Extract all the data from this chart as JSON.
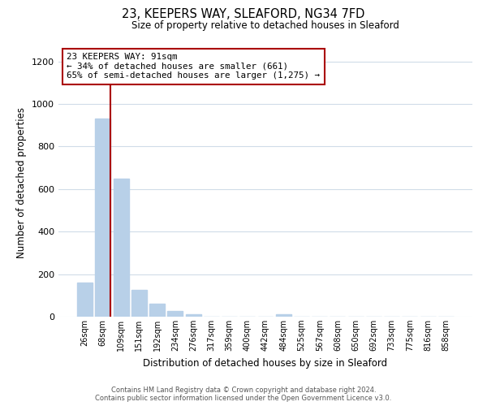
{
  "title_line1": "23, KEEPERS WAY, SLEAFORD, NG34 7FD",
  "title_line2": "Size of property relative to detached houses in Sleaford",
  "xlabel": "Distribution of detached houses by size in Sleaford",
  "ylabel": "Number of detached properties",
  "bar_labels": [
    "26sqm",
    "68sqm",
    "109sqm",
    "151sqm",
    "192sqm",
    "234sqm",
    "276sqm",
    "317sqm",
    "359sqm",
    "400sqm",
    "442sqm",
    "484sqm",
    "525sqm",
    "567sqm",
    "608sqm",
    "650sqm",
    "692sqm",
    "733sqm",
    "775sqm",
    "816sqm",
    "858sqm"
  ],
  "bar_values": [
    160,
    930,
    650,
    125,
    60,
    28,
    12,
    0,
    0,
    0,
    0,
    13,
    0,
    0,
    0,
    0,
    0,
    0,
    0,
    0,
    0
  ],
  "bar_color": "#b8d0e8",
  "vline_color": "#aa0000",
  "annotation_text": "23 KEEPERS WAY: 91sqm\n← 34% of detached houses are smaller (661)\n65% of semi-detached houses are larger (1,275) →",
  "annotation_box_color": "#ffffff",
  "annotation_border_color": "#aa0000",
  "ylim": [
    0,
    1260
  ],
  "yticks": [
    0,
    200,
    400,
    600,
    800,
    1000,
    1200
  ],
  "footer_line1": "Contains HM Land Registry data © Crown copyright and database right 2024.",
  "footer_line2": "Contains public sector information licensed under the Open Government Licence v3.0.",
  "bg_color": "#ffffff",
  "grid_color": "#d0dce8",
  "vline_x": 1.42
}
